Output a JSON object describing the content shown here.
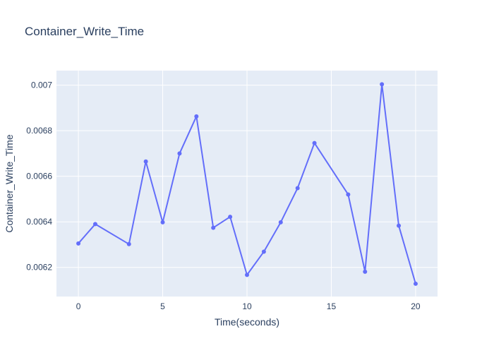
{
  "chart_data": {
    "type": "line",
    "title": "Container_Write_Time",
    "xlabel": "Time(seconds)",
    "ylabel": "Container_Write_Time",
    "x": [
      0,
      1,
      3,
      4,
      5,
      6,
      7,
      8,
      9,
      10,
      11,
      12,
      13,
      14,
      16,
      17,
      18,
      19,
      20
    ],
    "series": [
      {
        "values": [
          0.006305,
          0.00639,
          0.006302,
          0.006665,
          0.006398,
          0.0067,
          0.006863,
          0.006374,
          0.006422,
          0.006167,
          0.006269,
          0.006398,
          0.006548,
          0.006746,
          0.00652,
          0.006181,
          0.007004,
          0.006383,
          0.006128
        ],
        "color": "#636efa"
      }
    ],
    "xlim": [
      -1.3,
      21.3
    ],
    "ylim": [
      0.006072,
      0.007064
    ],
    "xticks": [
      0,
      5,
      10,
      15,
      20
    ],
    "yticks": [
      0.0062,
      0.0064,
      0.0066,
      0.0068,
      0.007
    ],
    "xtick_labels": [
      "0",
      "5",
      "10",
      "15",
      "20"
    ],
    "ytick_labels": [
      "0.0062",
      "0.0064",
      "0.0066",
      "0.0068",
      "0.007"
    ],
    "grid": true,
    "legend": "none",
    "colors": {
      "plot_background": "#e5ecf6",
      "text": "#2a3f5f",
      "grid": "#ffffff"
    }
  }
}
